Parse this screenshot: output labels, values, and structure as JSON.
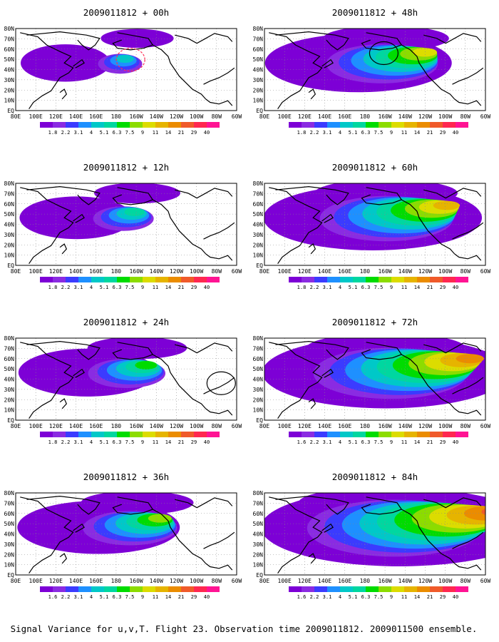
{
  "caption": "Signal Variance for u,v,T. Flight 23. Observation time 2009011812. 2009011500 ensemble.",
  "colors": {
    "scale": [
      "#7d00d6",
      "#8a2be2",
      "#3b3bff",
      "#1e90ff",
      "#00c8c8",
      "#00d7a0",
      "#00dc00",
      "#8cdc00",
      "#dcdc00",
      "#e6b400",
      "#eb8c00",
      "#f05a2a",
      "#ff2850",
      "#ff1493"
    ],
    "coast": "#000000",
    "grid": "#888888",
    "ellipse": "#000000",
    "ellipse_first": "#ff2d55"
  },
  "chart_data": [
    {
      "type": "heatmap",
      "title": "2009011812 + 00h",
      "field": "signal-variance",
      "x_ticks": [
        "80E",
        "100E",
        "120E",
        "140E",
        "160E",
        "180",
        "160W",
        "140W",
        "120W",
        "100W",
        "80W",
        "60W"
      ],
      "y_ticks": [
        "EQ",
        "10N",
        "20N",
        "30N",
        "40N",
        "50N",
        "60N",
        "70N",
        "80N"
      ],
      "legend_values": [
        "1.8",
        "2.2",
        "3.1",
        "4",
        "5.1",
        "6.3",
        "7.5",
        "9",
        "11",
        "14",
        "21",
        "29",
        "40"
      ],
      "level": 0.15,
      "marker": "red-circle-near-160W-55N"
    },
    {
      "type": "heatmap",
      "title": "2009011812 + 12h",
      "field": "signal-variance",
      "x_ticks": [
        "80E",
        "100E",
        "120E",
        "140E",
        "160E",
        "180",
        "160W",
        "140W",
        "120W",
        "100W",
        "80W",
        "60W"
      ],
      "y_ticks": [
        "EQ",
        "10N",
        "20N",
        "30N",
        "40N",
        "50N",
        "60N",
        "70N",
        "80N"
      ],
      "legend_values": [
        "1.8",
        "2.2",
        "3.1",
        "4",
        "5.1",
        "6.3",
        "7.5",
        "9",
        "11",
        "14",
        "21",
        "29",
        "40"
      ],
      "level": 0.25
    },
    {
      "type": "heatmap",
      "title": "2009011812 + 24h",
      "field": "signal-variance",
      "x_ticks": [
        "80E",
        "100E",
        "120E",
        "140E",
        "160E",
        "180",
        "160W",
        "140W",
        "120W",
        "100W",
        "80W",
        "60W"
      ],
      "y_ticks": [
        "EQ",
        "10N",
        "20N",
        "30N",
        "40N",
        "50N",
        "60N",
        "70N",
        "80N"
      ],
      "legend_values": [
        "1.8",
        "2.2",
        "3.1",
        "4",
        "5.1",
        "6.3",
        "7.5",
        "9",
        "11",
        "14",
        "21",
        "29",
        "40"
      ],
      "level": 0.35,
      "marker": "black-circle-near-85W-40N"
    },
    {
      "type": "heatmap",
      "title": "2009011812 + 36h",
      "field": "signal-variance",
      "x_ticks": [
        "80E",
        "100E",
        "120E",
        "140E",
        "160E",
        "180",
        "160W",
        "140W",
        "120W",
        "100W",
        "80W",
        "60W"
      ],
      "y_ticks": [
        "EQ",
        "10N",
        "20N",
        "30N",
        "40N",
        "50N",
        "60N",
        "70N",
        "80N"
      ],
      "legend_values": [
        "1.6",
        "2.2",
        "3.1",
        "4",
        "5.1",
        "6.3",
        "7.5",
        "9",
        "11",
        "14",
        "21",
        "29",
        "40"
      ],
      "level": 0.45
    },
    {
      "type": "heatmap",
      "title": "2009011812 + 48h",
      "field": "signal-variance",
      "x_ticks": [
        "80E",
        "100E",
        "120E",
        "140E",
        "160E",
        "180",
        "160W",
        "140W",
        "120W",
        "100W",
        "80W",
        "60W"
      ],
      "y_ticks": [
        "EQ",
        "10N",
        "20N",
        "30N",
        "40N",
        "50N",
        "60N",
        "70N",
        "80N"
      ],
      "legend_values": [
        "1.8",
        "2.2",
        "3.1",
        "4",
        "5.1",
        "6.3",
        "7.5",
        "9",
        "11",
        "14",
        "21",
        "29",
        "40"
      ],
      "level": 0.55,
      "marker": "black-circle-near-150W-60N"
    },
    {
      "type": "heatmap",
      "title": "2009011812 + 60h",
      "field": "signal-variance",
      "x_ticks": [
        "80E",
        "100E",
        "120E",
        "140E",
        "160E",
        "180",
        "160W",
        "140W",
        "120W",
        "100W",
        "80W",
        "60W"
      ],
      "y_ticks": [
        "EQ",
        "10N",
        "20N",
        "30N",
        "40N",
        "50N",
        "60N",
        "70N",
        "80N"
      ],
      "legend_values": [
        "1.8",
        "2.2",
        "3.1",
        "4",
        "5.1",
        "6.3",
        "7.5",
        "9",
        "11",
        "14",
        "21",
        "29",
        "40"
      ],
      "level": 0.68
    },
    {
      "type": "heatmap",
      "title": "2009011812 + 72h",
      "field": "signal-variance",
      "x_ticks": [
        "80E",
        "100E",
        "120E",
        "140E",
        "160E",
        "180",
        "160W",
        "140W",
        "120W",
        "100W",
        "80W",
        "60W"
      ],
      "y_ticks": [
        "EQ",
        "10N",
        "20N",
        "30N",
        "40N",
        "50N",
        "60N",
        "70N",
        "80N"
      ],
      "legend_values": [
        "1.6",
        "2.2",
        "3.1",
        "4",
        "5.1",
        "6.3",
        "7.5",
        "9",
        "11",
        "14",
        "21",
        "29",
        "40"
      ],
      "level": 0.8
    },
    {
      "type": "heatmap",
      "title": "2009011812 + 84h",
      "field": "signal-variance",
      "x_ticks": [
        "80E",
        "100E",
        "120E",
        "140E",
        "160E",
        "180",
        "160W",
        "140W",
        "120W",
        "100W",
        "80W",
        "60W"
      ],
      "y_ticks": [
        "EQ",
        "10N",
        "20N",
        "30N",
        "40N",
        "50N",
        "60N",
        "70N",
        "80N"
      ],
      "legend_values": [
        "1.6",
        "2.2",
        "3.1",
        "4",
        "5.1",
        "6.3",
        "7.5",
        "9",
        "11",
        "14",
        "21",
        "29",
        "40"
      ],
      "level": 0.92
    }
  ]
}
